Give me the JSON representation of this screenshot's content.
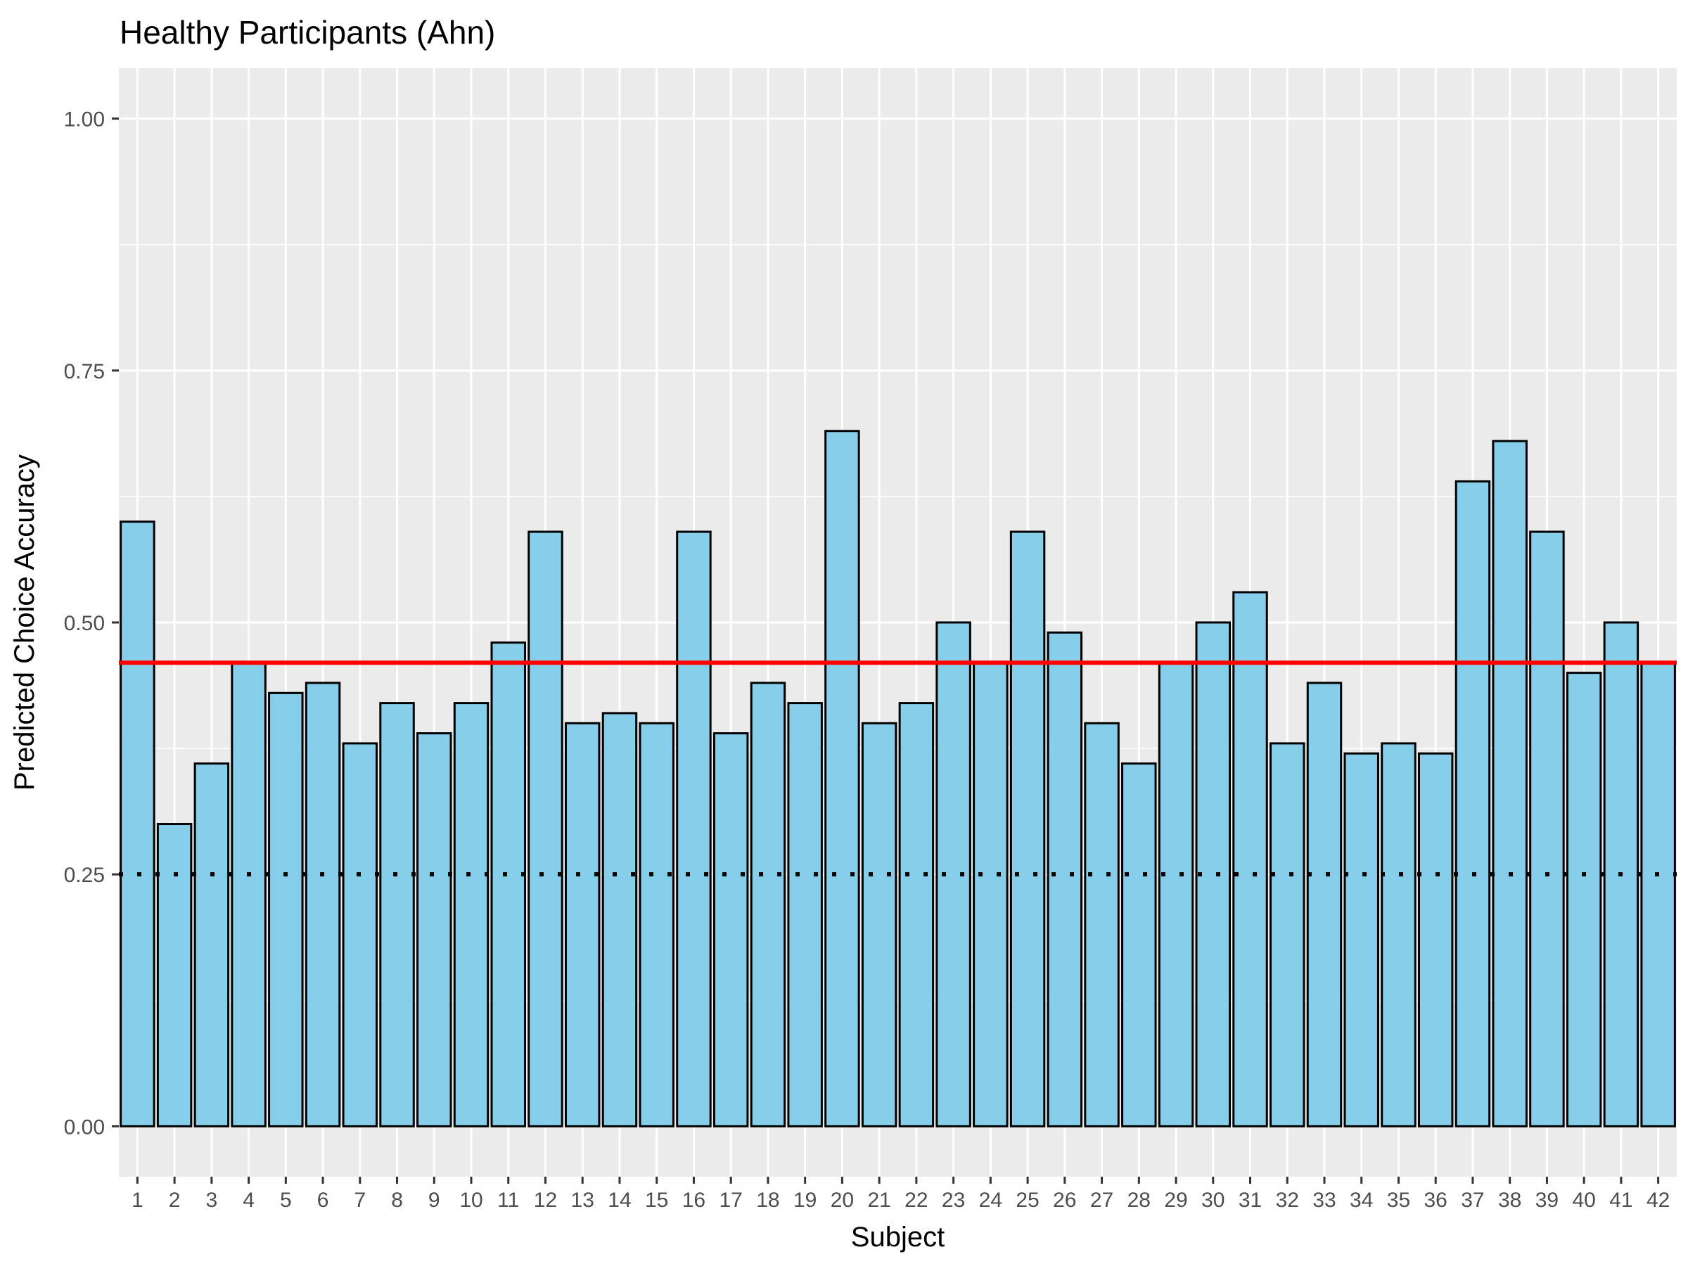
{
  "chart_data": {
    "type": "bar",
    "title": "Healthy Participants (Ahn)",
    "xlabel": "Subject",
    "ylabel": "Predicted Choice Accuracy",
    "categories": [
      "1",
      "2",
      "3",
      "4",
      "5",
      "6",
      "7",
      "8",
      "9",
      "10",
      "11",
      "12",
      "13",
      "14",
      "15",
      "16",
      "17",
      "18",
      "19",
      "20",
      "21",
      "22",
      "23",
      "24",
      "25",
      "26",
      "27",
      "28",
      "29",
      "30",
      "31",
      "32",
      "33",
      "34",
      "35",
      "36",
      "37",
      "38",
      "39",
      "40",
      "41",
      "42"
    ],
    "values": [
      0.6,
      0.3,
      0.36,
      0.46,
      0.43,
      0.44,
      0.38,
      0.42,
      0.39,
      0.42,
      0.48,
      0.59,
      0.4,
      0.41,
      0.4,
      0.59,
      0.39,
      0.44,
      0.42,
      0.69,
      0.4,
      0.42,
      0.5,
      0.46,
      0.59,
      0.49,
      0.4,
      0.36,
      0.46,
      0.5,
      0.53,
      0.38,
      0.44,
      0.37,
      0.38,
      0.37,
      0.64,
      0.68,
      0.59,
      0.45,
      0.5,
      0.46
    ],
    "ylim": [
      -0.05,
      1.05
    ],
    "yticks": [
      0.0,
      0.25,
      0.5,
      0.75,
      1.0
    ],
    "ytick_labels": [
      "0.00",
      "0.25",
      "0.50",
      "0.75",
      "1.00"
    ],
    "reference_lines": [
      {
        "value": 0.46,
        "style": "solid",
        "color": "#ff0000"
      },
      {
        "value": 0.25,
        "style": "dotted",
        "color": "#000000"
      }
    ],
    "bar_fill": "#87ceeb",
    "bar_outline": "#000000",
    "panel_background": "#ebebeb",
    "grid": true
  }
}
